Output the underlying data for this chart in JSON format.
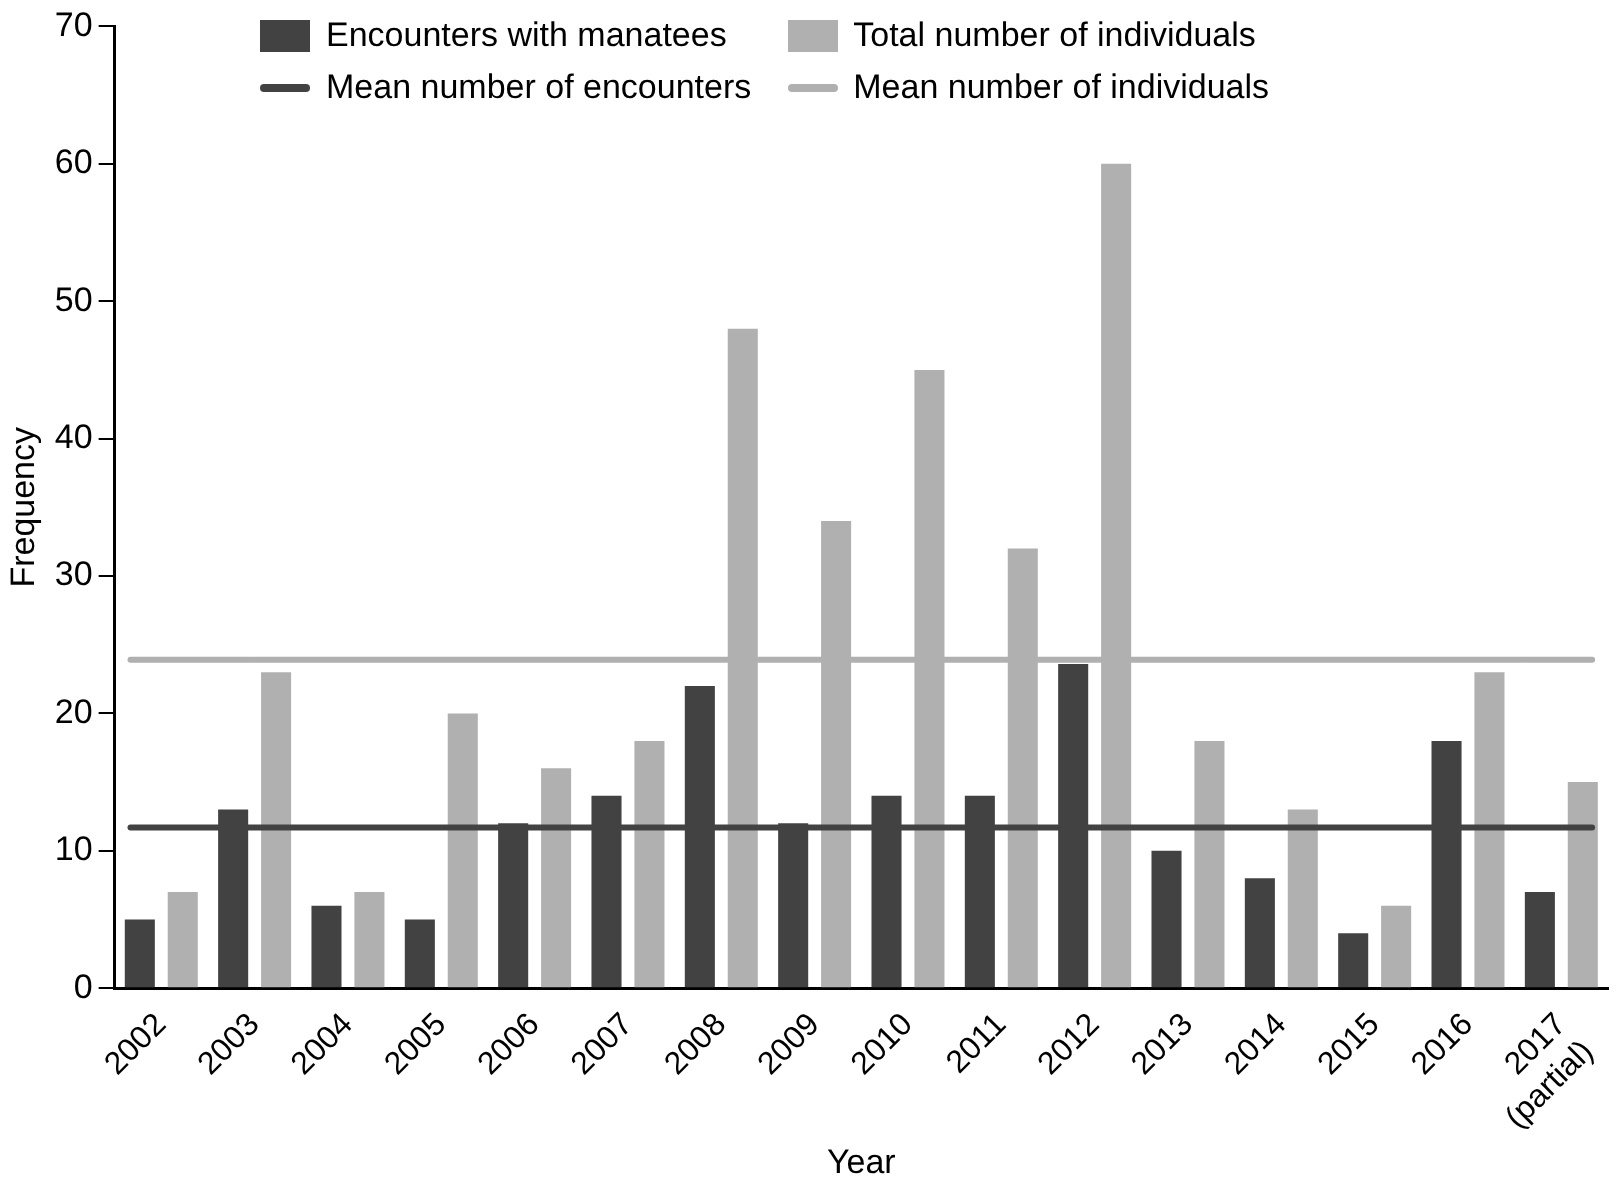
{
  "chart_data": {
    "type": "bar",
    "xlabel": "Year",
    "ylabel": "Frequency",
    "categories": [
      "2002",
      "2003",
      "2004",
      "2005",
      "2006",
      "2007",
      "2008",
      "2009",
      "2010",
      "2011",
      "2012",
      "2013",
      "2014",
      "2015",
      "2016",
      "2017\n(partial)"
    ],
    "series": [
      {
        "name": "Encounters with manatees",
        "color": "#424242",
        "values": [
          5,
          13,
          6,
          5,
          12,
          14,
          22,
          12,
          14,
          14,
          23.6,
          10,
          8,
          4,
          18,
          7
        ]
      },
      {
        "name": "Total number of individuals",
        "color": "#b0b0b0",
        "values": [
          7,
          23,
          7,
          20,
          16,
          18,
          48,
          34,
          45,
          32,
          60,
          18,
          13,
          6,
          23,
          15
        ]
      }
    ],
    "ref_lines": [
      {
        "axis": "y",
        "value": 11.7,
        "label": "Mean number of encounters",
        "color": "#424242"
      },
      {
        "axis": "y",
        "value": 23.9,
        "label": "Mean number of individuals",
        "color": "#b0b0b0"
      }
    ],
    "ylim": [
      0,
      70
    ],
    "yticks": [
      0,
      10,
      20,
      30,
      40,
      50,
      60,
      70
    ],
    "grid": false,
    "legend": "top"
  }
}
